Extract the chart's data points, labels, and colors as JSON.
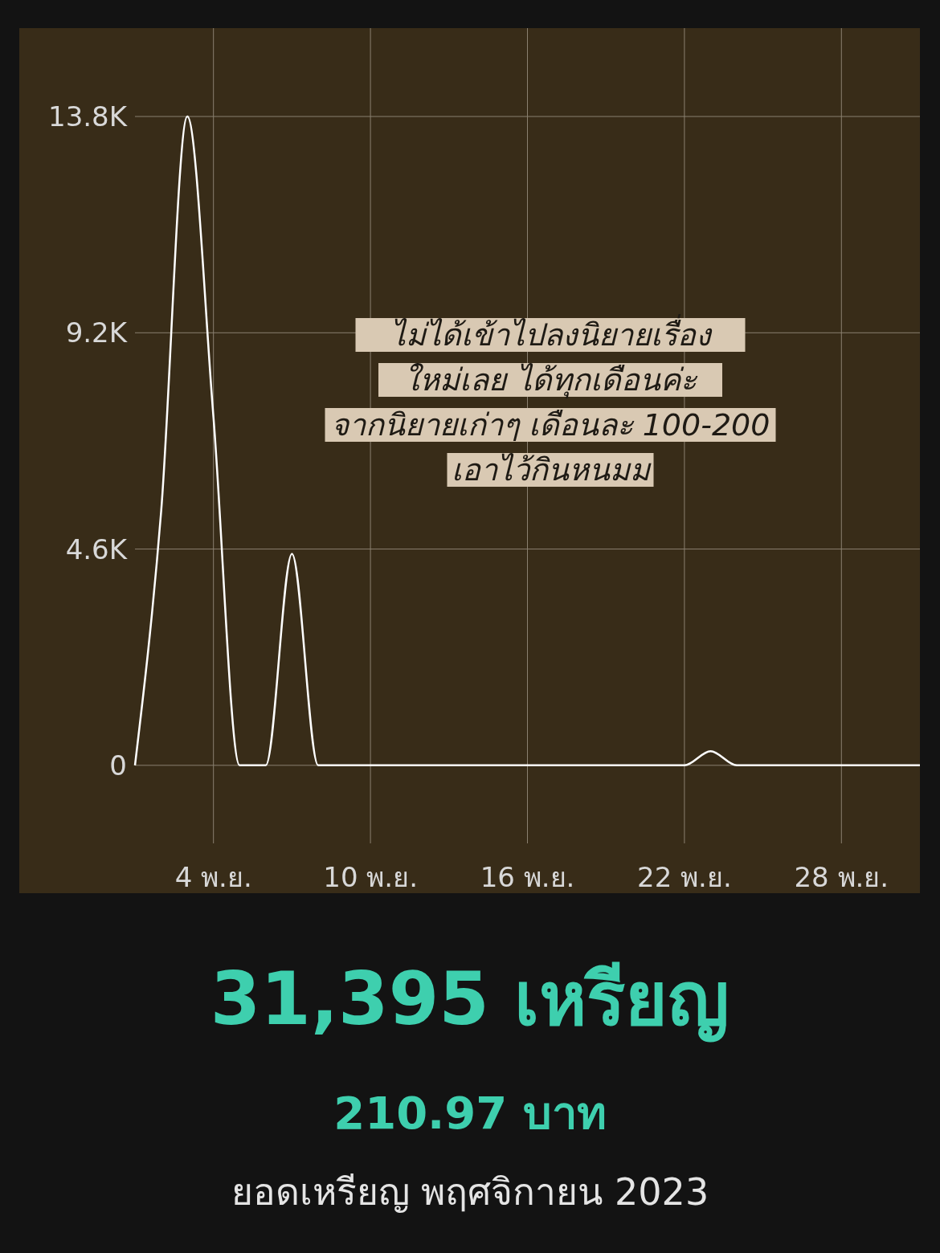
{
  "chart_data": {
    "type": "line",
    "title": "31,395 เหรียญ",
    "subtitle": "210.97 บาท",
    "annotations": [
      "ไม่ได้เข้าไปลงนิยายเรื่อง\nใหม่เลย ได้ทุกเดือนค่ะ\nจากนิยายเก่าๆ เดือนละ 100-200\nเอาไว้กินหนมม",
      "ยอดเหรียญ พฤศจิกายน 2023"
    ],
    "x": [
      "--11-01",
      "--11-02",
      "--11-03",
      "--11-04",
      "--11-05",
      "--11-06",
      "--11-07",
      "--11-08",
      "--11-09",
      "--11-10",
      "--11-11",
      "--11-12",
      "--11-13",
      "--11-14",
      "--11-15",
      "--11-16",
      "--11-17",
      "--11-18",
      "--11-19",
      "--11-20",
      "--11-21",
      "--11-22",
      "--11-23",
      "--11-24",
      "--11-25",
      "--11-26",
      "--11-27",
      "--11-28",
      "--11-29",
      "--11-30",
      "--12-01"
    ],
    "series": [
      {
        "color": "#ffffff",
        "values": [
          0,
          5400,
          13800,
          7400,
          0,
          0,
          4500,
          0,
          0,
          0,
          0,
          0,
          0,
          0,
          0,
          0,
          0,
          0,
          0,
          0,
          0,
          0,
          300,
          0,
          0,
          0,
          0,
          0,
          0,
          0,
          0
        ]
      }
    ],
    "xlim": [
      "--11-01",
      "--12-01"
    ],
    "xticks": [
      {
        "value": "--11-04",
        "label": "4 พ.ย."
      },
      {
        "value": "--11-10",
        "label": "10 พ.ย."
      },
      {
        "value": "--11-16",
        "label": "16 พ.ย."
      },
      {
        "value": "--11-22",
        "label": "22 พ.ย."
      },
      {
        "value": "--11-28",
        "label": "28 พ.ย."
      }
    ],
    "ylim": [
      -1660,
      15680
    ],
    "yticks": [
      0,
      {
        "value": 4600,
        "label": "4.6K"
      },
      {
        "value": 9200,
        "label": "9.2K"
      },
      {
        "value": 13800,
        "label": "13.8K"
      }
    ],
    "grid": true,
    "marker": "none",
    "line_style": "solid"
  }
}
